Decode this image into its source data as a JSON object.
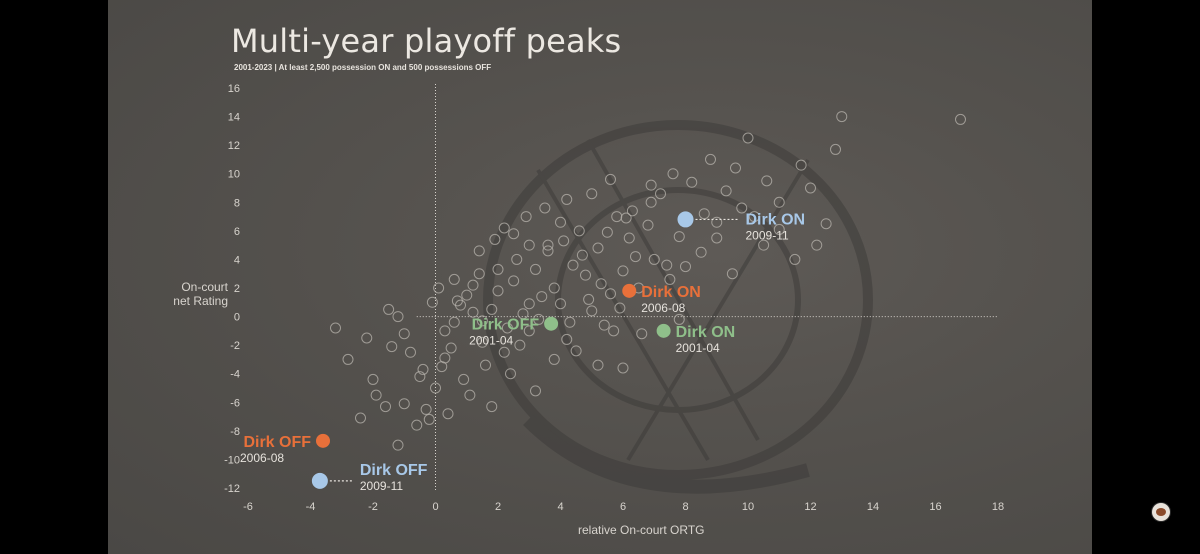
{
  "chart_data": {
    "type": "scatter",
    "title": "Multi-year playoff peaks",
    "subtitle": "2001-2023 | At least 2,500 possession ON and 500 possessions OFF",
    "xlabel": "relative On-court ORTG",
    "ylabel_line1": "On-court",
    "ylabel_line2": "net Rating",
    "xlim": [
      -6,
      18
    ],
    "ylim": [
      -12,
      16
    ],
    "x_ticks": [
      -6,
      -4,
      -2,
      0,
      2,
      4,
      6,
      8,
      10,
      12,
      14,
      16,
      18
    ],
    "y_ticks": [
      -12,
      -10,
      -8,
      -6,
      -4,
      -2,
      0,
      2,
      4,
      6,
      8,
      10,
      12,
      14,
      16
    ],
    "colors": {
      "orange": "#e8703a",
      "green": "#8fbf8a",
      "blue": "#a8c8e8",
      "background_points": "#b8b4ae"
    },
    "highlights": [
      {
        "label": "Dirk ON",
        "years": "2009-11",
        "x": 8.0,
        "y": 6.8,
        "color": "blue",
        "side": "right"
      },
      {
        "label": "Dirk ON",
        "years": "2006-08",
        "x": 6.2,
        "y": 1.8,
        "color": "orange",
        "side": "right"
      },
      {
        "label": "Dirk ON",
        "years": "2001-04",
        "x": 7.3,
        "y": -1.0,
        "color": "green",
        "side": "right"
      },
      {
        "label": "Dirk OFF",
        "years": "2001-04",
        "x": 3.7,
        "y": -0.5,
        "color": "green",
        "side": "left"
      },
      {
        "label": "Dirk OFF",
        "years": "2006-08",
        "x": -3.6,
        "y": -8.7,
        "color": "orange",
        "side": "left"
      },
      {
        "label": "Dirk OFF",
        "years": "2009-11",
        "x": -3.7,
        "y": -11.5,
        "color": "blue",
        "side": "right-below"
      }
    ],
    "background_points": [
      [
        -3.2,
        -0.8
      ],
      [
        -2.8,
        -3.0
      ],
      [
        -2.2,
        -1.5
      ],
      [
        -1.5,
        0.5
      ],
      [
        -1.2,
        0.0
      ],
      [
        -1.0,
        -1.2
      ],
      [
        -0.8,
        -2.5
      ],
      [
        -0.5,
        -4.2
      ],
      [
        -0.3,
        -6.5
      ],
      [
        0.0,
        -5.0
      ],
      [
        0.2,
        -3.5
      ],
      [
        0.3,
        -1.0
      ],
      [
        0.5,
        -2.2
      ],
      [
        0.6,
        -0.4
      ],
      [
        0.8,
        0.8
      ],
      [
        1.0,
        1.5
      ],
      [
        1.2,
        2.2
      ],
      [
        1.5,
        -1.8
      ],
      [
        1.4,
        3.0
      ],
      [
        1.8,
        0.5
      ],
      [
        2.0,
        1.8
      ],
      [
        2.2,
        -2.5
      ],
      [
        2.5,
        2.5
      ],
      [
        2.6,
        4.0
      ],
      [
        2.8,
        0.2
      ],
      [
        3.0,
        -1.0
      ],
      [
        3.2,
        3.3
      ],
      [
        3.4,
        1.4
      ],
      [
        3.6,
        5.0
      ],
      [
        3.8,
        2.0
      ],
      [
        4.0,
        0.9
      ],
      [
        4.2,
        -1.6
      ],
      [
        4.4,
        3.6
      ],
      [
        4.6,
        6.0
      ],
      [
        4.8,
        2.9
      ],
      [
        5.0,
        0.4
      ],
      [
        5.2,
        4.8
      ],
      [
        5.4,
        -0.6
      ],
      [
        5.6,
        1.6
      ],
      [
        5.8,
        7.0
      ],
      [
        6.0,
        3.2
      ],
      [
        6.2,
        5.5
      ],
      [
        6.5,
        2.0
      ],
      [
        6.8,
        6.4
      ],
      [
        7.0,
        4.0
      ],
      [
        7.2,
        8.6
      ],
      [
        7.5,
        2.6
      ],
      [
        7.8,
        5.6
      ],
      [
        8.2,
        9.4
      ],
      [
        8.5,
        4.5
      ],
      [
        8.8,
        11.0
      ],
      [
        9.0,
        6.6
      ],
      [
        9.5,
        3.0
      ],
      [
        9.8,
        7.6
      ],
      [
        10.0,
        12.5
      ],
      [
        10.5,
        5.0
      ],
      [
        11.0,
        8.0
      ],
      [
        11.5,
        4.0
      ],
      [
        12.0,
        9.0
      ],
      [
        12.5,
        6.5
      ],
      [
        13.0,
        14.0
      ],
      [
        16.8,
        13.8
      ],
      [
        12.2,
        5.0
      ],
      [
        1.1,
        -5.5
      ],
      [
        0.9,
        -4.4
      ],
      [
        0.4,
        -6.8
      ],
      [
        -0.2,
        -7.2
      ],
      [
        -1.0,
        -6.1
      ],
      [
        -1.6,
        -6.3
      ],
      [
        -1.9,
        -5.5
      ],
      [
        -2.4,
        -7.1
      ],
      [
        -1.2,
        -9.0
      ],
      [
        -0.6,
        -7.6
      ],
      [
        1.8,
        -6.3
      ],
      [
        2.4,
        -4.0
      ],
      [
        3.2,
        -5.2
      ],
      [
        3.8,
        -3.0
      ],
      [
        4.5,
        -2.4
      ],
      [
        5.2,
        -3.4
      ],
      [
        6.0,
        -3.6
      ],
      [
        6.6,
        -1.2
      ],
      [
        7.8,
        -0.2
      ],
      [
        2.2,
        6.2
      ],
      [
        2.9,
        7.0
      ],
      [
        3.5,
        7.6
      ],
      [
        4.2,
        8.2
      ],
      [
        5.0,
        8.6
      ],
      [
        5.6,
        9.6
      ],
      [
        6.3,
        7.4
      ],
      [
        6.9,
        8.0
      ],
      [
        8.6,
        7.2
      ],
      [
        9.3,
        8.8
      ],
      [
        10.2,
        7.0
      ],
      [
        1.4,
        4.6
      ],
      [
        1.9,
        5.4
      ],
      [
        2.5,
        5.8
      ],
      [
        0.6,
        2.6
      ],
      [
        -0.1,
        1.0
      ],
      [
        0.1,
        2.0
      ],
      [
        0.7,
        1.1
      ],
      [
        1.5,
        -0.3
      ],
      [
        2.3,
        -0.8
      ],
      [
        3.0,
        0.9
      ],
      [
        4.9,
        1.2
      ],
      [
        5.3,
        2.3
      ],
      [
        5.9,
        0.6
      ],
      [
        6.4,
        4.2
      ],
      [
        7.4,
        3.6
      ],
      [
        3.6,
        4.6
      ],
      [
        4.1,
        5.3
      ],
      [
        4.7,
        4.3
      ],
      [
        5.5,
        5.9
      ],
      [
        6.1,
        6.9
      ],
      [
        2.0,
        3.3
      ],
      [
        1.2,
        0.3
      ],
      [
        0.3,
        -2.9
      ],
      [
        -0.4,
        -3.7
      ],
      [
        -1.4,
        -2.1
      ],
      [
        -2.0,
        -4.4
      ],
      [
        1.6,
        -3.4
      ],
      [
        2.7,
        -2.0
      ],
      [
        3.3,
        -0.2
      ],
      [
        4.3,
        -0.4
      ],
      [
        5.7,
        -1.0
      ],
      [
        8.0,
        3.5
      ],
      [
        9.0,
        5.5
      ],
      [
        10.6,
        9.5
      ],
      [
        11.7,
        10.6
      ],
      [
        12.8,
        11.7
      ],
      [
        11.0,
        6.1
      ],
      [
        9.6,
        10.4
      ],
      [
        7.6,
        10.0
      ],
      [
        6.9,
        9.2
      ],
      [
        4.0,
        6.6
      ],
      [
        3.0,
        5.0
      ]
    ]
  }
}
